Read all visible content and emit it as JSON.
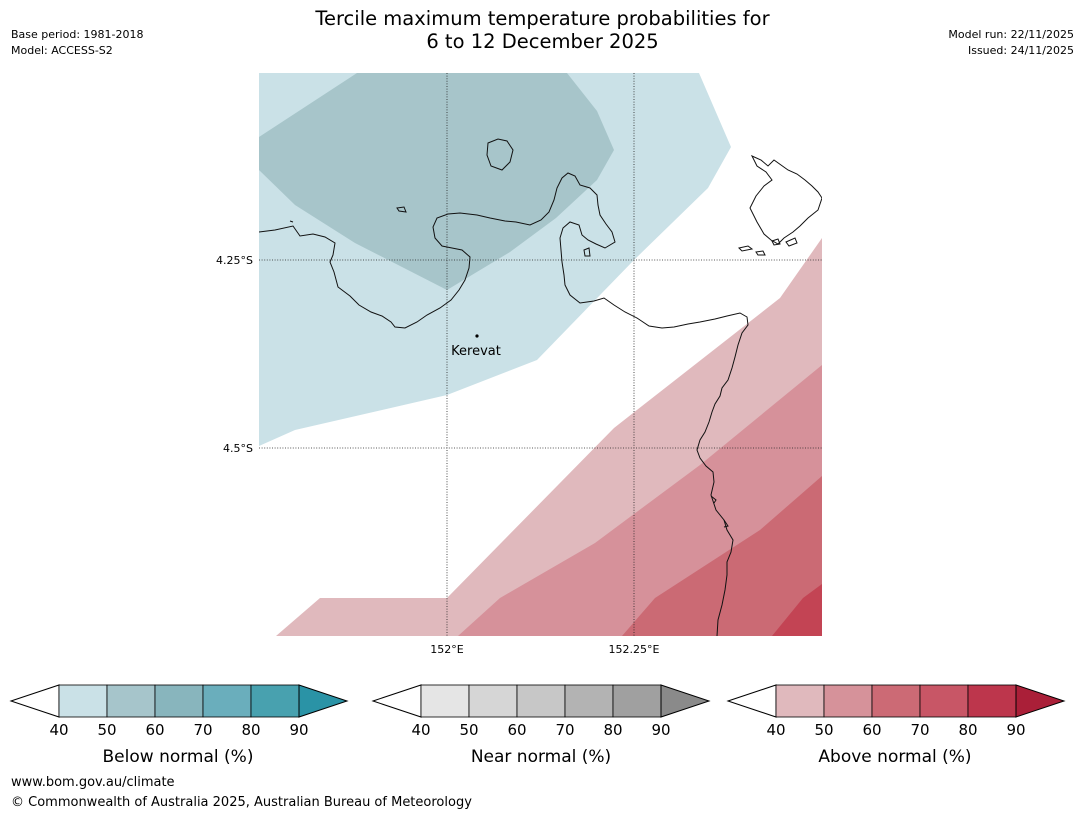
{
  "header": {
    "title_line1": "Tercile maximum temperature probabilities for",
    "title_line2": "6 to 12 December 2025",
    "base_period": "Base period: 1981-2018",
    "model": "Model: ACCESS-S2",
    "model_run": "Model run: 22/11/2025",
    "issued": "Issued: 24/11/2025"
  },
  "map": {
    "lat_labels": [
      "4.25°S",
      "4.5°S"
    ],
    "lon_labels": [
      "152°E",
      "152.25°E"
    ],
    "place_name": "Kerevat"
  },
  "legends": [
    {
      "label": "Below normal (%)",
      "ticks": [
        "40",
        "50",
        "60",
        "70",
        "80",
        "90"
      ],
      "colors": [
        "#cae1e7",
        "#a6c5cb",
        "#88b5bd",
        "#6aaebc",
        "#48a1af"
      ],
      "over_color": "#2a93a6"
    },
    {
      "label": "Near normal (%)",
      "ticks": [
        "40",
        "50",
        "60",
        "70",
        "80",
        "90"
      ],
      "colors": [
        "#e5e5e5",
        "#d6d6d6",
        "#c7c7c7",
        "#b3b3b3",
        "#a0a0a0"
      ],
      "over_color": "#8a8a8a"
    },
    {
      "label": "Above normal (%)",
      "ticks": [
        "40",
        "50",
        "60",
        "70",
        "80",
        "90"
      ],
      "colors": [
        "#e0b9bd",
        "#d6929a",
        "#cc6a75",
        "#c85666",
        "#bd364c"
      ],
      "over_color": "#aa1f38"
    }
  ],
  "footer": {
    "url": "www.bom.gov.au/climate",
    "copyright": "© Commonwealth of Australia 2025, Australian Bureau of Meteorology"
  }
}
